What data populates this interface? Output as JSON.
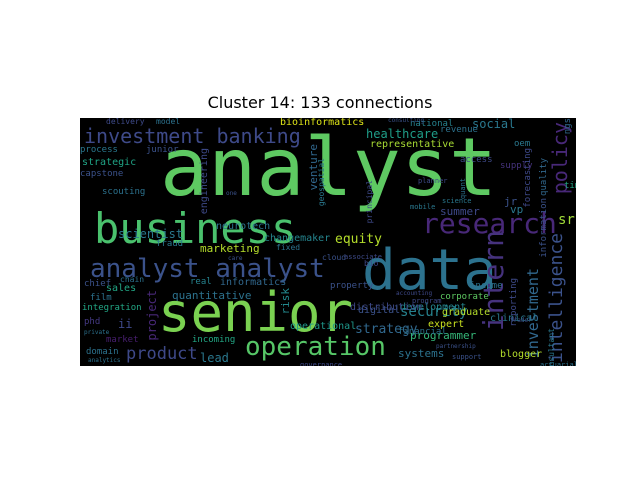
{
  "title": "Cluster 14: 133 connections",
  "cloud": {
    "background": "#000000",
    "words": [
      {
        "text": "analyst",
        "color": "#5ec962"
      },
      {
        "text": "business",
        "color": "#4ac16d"
      },
      {
        "text": "data",
        "color": "#2c728e"
      },
      {
        "text": "senior",
        "color": "#7ad151"
      },
      {
        "text": "analyst analyst",
        "color": "#3b528b"
      },
      {
        "text": "research",
        "color": "#482878"
      },
      {
        "text": "operation",
        "color": "#56c667"
      },
      {
        "text": "investment banking",
        "color": "#3e4a89"
      },
      {
        "text": "intern",
        "color": "#46327e"
      },
      {
        "text": "intelligence",
        "color": "#3b528b"
      },
      {
        "text": "policy",
        "color": "#482878"
      },
      {
        "text": "investment",
        "color": "#31688e"
      },
      {
        "text": "product",
        "color": "#3e4989"
      },
      {
        "text": "equity",
        "color": "#b5de2b"
      },
      {
        "text": "security",
        "color": "#26828e"
      },
      {
        "text": "strategy",
        "color": "#31688e"
      },
      {
        "text": "healthcare",
        "color": "#1f9e89"
      },
      {
        "text": "social",
        "color": "#2a788e"
      },
      {
        "text": "scientist",
        "color": "#2a788e"
      },
      {
        "text": "marketing",
        "color": "#b5de2b"
      },
      {
        "text": "quantitative",
        "color": "#2c728e"
      },
      {
        "text": "programmer",
        "color": "#35b779"
      },
      {
        "text": "bioinformatics",
        "color": "#dde318"
      },
      {
        "text": "lead",
        "color": "#2a788e"
      },
      {
        "text": "strategic",
        "color": "#20a486"
      },
      {
        "text": "sales",
        "color": "#22a785"
      },
      {
        "text": "sr",
        "color": "#a0da39"
      },
      {
        "text": "representative",
        "color": "#a8db34"
      },
      {
        "text": "summer",
        "color": "#3e4989"
      },
      {
        "text": "project",
        "color": "#482878"
      },
      {
        "text": "venture",
        "color": "#31688e"
      },
      {
        "text": "risk",
        "color": "#23898e"
      },
      {
        "text": "neurotech",
        "color": "#2c728e"
      },
      {
        "text": "changemaker",
        "color": "#25858e"
      },
      {
        "text": "engineering",
        "color": "#3e4a89"
      },
      {
        "text": "development",
        "color": "#25858e"
      },
      {
        "text": "distribution",
        "color": "#3e4a89"
      },
      {
        "text": "operational",
        "color": "#1f988b"
      },
      {
        "text": "property",
        "color": "#3b528b"
      },
      {
        "text": "informatics",
        "color": "#31688e"
      },
      {
        "text": "real",
        "color": "#26828e"
      },
      {
        "text": "chief",
        "color": "#3b528b"
      },
      {
        "text": "fraud",
        "color": "#2a788e"
      },
      {
        "text": "film",
        "color": "#2c728e"
      },
      {
        "text": "integration",
        "color": "#22a785"
      },
      {
        "text": "phd",
        "color": "#443983"
      },
      {
        "text": "ii",
        "color": "#3e4989"
      },
      {
        "text": "market",
        "color": "#481f70"
      },
      {
        "text": "domain",
        "color": "#2c728e"
      },
      {
        "text": "incoming",
        "color": "#22a785"
      },
      {
        "text": "systems",
        "color": "#2c728e"
      },
      {
        "text": "expert",
        "color": "#c8e020"
      },
      {
        "text": "blogger",
        "color": "#b5de2b"
      },
      {
        "text": "clinical",
        "color": "#2a788e"
      },
      {
        "text": "digital",
        "color": "#3b528b"
      },
      {
        "text": "graduate",
        "color": "#b5de2b"
      },
      {
        "text": "corporate",
        "color": "#5ec962"
      },
      {
        "text": "income",
        "color": "#2c728e"
      },
      {
        "text": "financial",
        "color": "#2c728e"
      },
      {
        "text": "reporting",
        "color": "#3e4a89"
      },
      {
        "text": "information",
        "color": "#3b528b"
      },
      {
        "text": "forecasting",
        "color": "#3e4989"
      },
      {
        "text": "quality",
        "color": "#31688e"
      },
      {
        "text": "time",
        "color": "#22a785"
      },
      {
        "text": "ngs",
        "color": "#31688e"
      },
      {
        "text": "revenue",
        "color": "#2c728e"
      },
      {
        "text": "national",
        "color": "#26828e"
      },
      {
        "text": "supply",
        "color": "#46337e"
      },
      {
        "text": "access",
        "color": "#3e4a89"
      },
      {
        "text": "oem",
        "color": "#2a788e"
      },
      {
        "text": "jr",
        "color": "#3b528b"
      },
      {
        "text": "vp",
        "color": "#2a788e"
      },
      {
        "text": "process",
        "color": "#2a788e"
      },
      {
        "text": "junior",
        "color": "#3b528b"
      },
      {
        "text": "capstone",
        "color": "#3b528b"
      },
      {
        "text": "scouting",
        "color": "#2c728e"
      },
      {
        "text": "delivery",
        "color": "#3e4a89"
      },
      {
        "text": "model",
        "color": "#2c728e"
      },
      {
        "text": "chain",
        "color": "#2c728e"
      },
      {
        "text": "fixed",
        "color": "#2c728e"
      },
      {
        "text": "cloud",
        "color": "#3b528b"
      },
      {
        "text": "bio",
        "color": "#3e4989"
      },
      {
        "text": "associate",
        "color": "#3e4a89"
      },
      {
        "text": "mobile",
        "color": "#2a788e"
      },
      {
        "text": "science",
        "color": "#2a788e"
      },
      {
        "text": "planner",
        "color": "#3e4a89"
      },
      {
        "text": "principal",
        "color": "#3e4a89"
      },
      {
        "text": "geospatial",
        "color": "#2a788e"
      },
      {
        "text": "program",
        "color": "#3e4a89"
      },
      {
        "text": "trader",
        "color": "#3b528b"
      },
      {
        "text": "consulting",
        "color": "#3b528b"
      },
      {
        "text": "consultant",
        "color": "#2a788e"
      },
      {
        "text": "actuarial",
        "color": "#2c728e"
      },
      {
        "text": "support",
        "color": "#3b528b"
      },
      {
        "text": "governance",
        "color": "#3e4989"
      },
      {
        "text": "partnership",
        "color": "#3b528b"
      },
      {
        "text": "accounting",
        "color": "#3e4989"
      },
      {
        "text": "analytics",
        "color": "#2c728e"
      },
      {
        "text": "private",
        "color": "#2c728e"
      },
      {
        "text": "quant",
        "color": "#2c728e"
      },
      {
        "text": "one",
        "color": "#3b528b"
      },
      {
        "text": "care",
        "color": "#3b528b"
      }
    ]
  }
}
